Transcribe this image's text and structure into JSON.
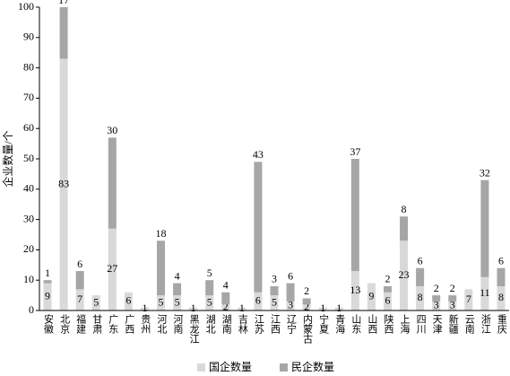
{
  "chart_data": {
    "type": "stacked_bar",
    "ylabel": "企业数量/个",
    "categories": [
      "安徽",
      "北京",
      "福建",
      "甘肃",
      "广东",
      "广西",
      "贵州",
      "河北",
      "河南",
      "黑龙江",
      "湖北",
      "湖南",
      "吉林",
      "江苏",
      "江西",
      "辽宁",
      "内蒙古",
      "宁夏",
      "青海",
      "山东",
      "山西",
      "陕西",
      "上海",
      "四川",
      "天津",
      "新疆",
      "云南",
      "浙江",
      "重庆"
    ],
    "series": [
      {
        "name": "国企数量",
        "color": "#d9d9d9",
        "values": [
          9,
          83,
          7,
          5,
          27,
          6,
          1,
          5,
          5,
          1,
          5,
          2,
          1,
          6,
          5,
          3,
          2,
          1,
          1,
          13,
          9,
          6,
          23,
          8,
          3,
          3,
          7,
          11,
          8
        ]
      },
      {
        "name": "民企数量",
        "color": "#a6a6a6",
        "values": [
          1,
          17,
          6,
          0,
          30,
          0,
          0,
          18,
          4,
          0,
          5,
          4,
          0,
          43,
          3,
          6,
          2,
          0,
          0,
          37,
          0,
          2,
          8,
          6,
          2,
          2,
          0,
          32,
          6
        ],
        "value_labels": [
          "1",
          "17",
          "6",
          null,
          "30",
          null,
          null,
          "18",
          "4",
          null,
          "5",
          "4",
          null,
          "43",
          "3",
          "6",
          "2",
          null,
          null,
          "37",
          null,
          "2",
          "8",
          "6",
          "2",
          "2",
          null,
          "32",
          "6"
        ]
      }
    ],
    "ylim": [
      0,
      100
    ],
    "yticks": [
      0,
      10,
      20,
      30,
      40,
      50,
      60,
      70,
      80,
      90,
      100
    ],
    "legend": "bottom"
  }
}
